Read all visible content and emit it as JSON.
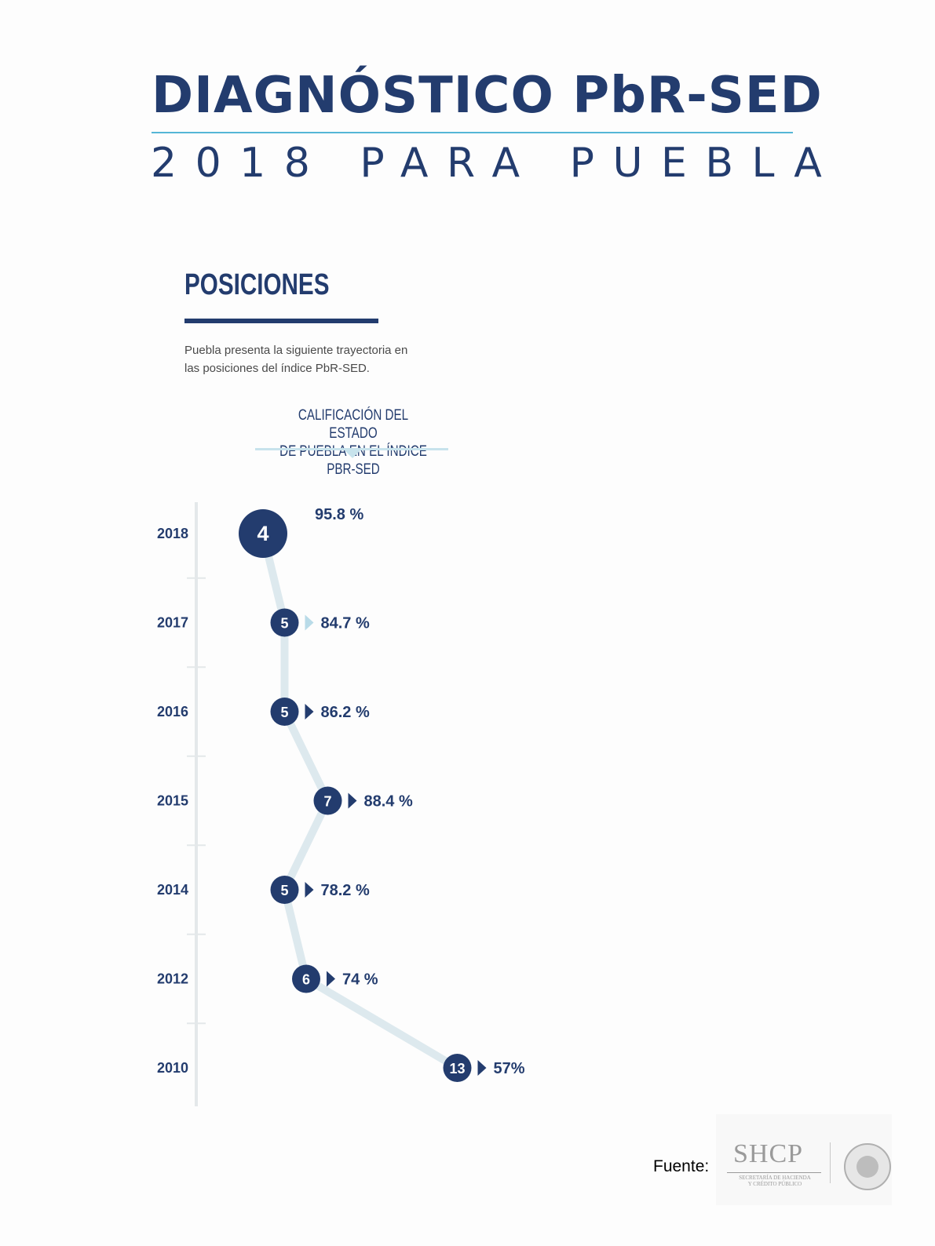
{
  "header": {
    "title": "DIAGNÓSTICO PbR-SED",
    "subtitle": "2018 PARA PUEBLA"
  },
  "section": {
    "heading": "POSICIONES",
    "intro_line1": "Puebla presenta la siguiente trayectoria en",
    "intro_line2": "las posiciones del índice PbR-SED."
  },
  "chart_label": {
    "line1": "CALIFICACIÓN DEL ESTADO",
    "line2": "DE PUEBLA EN EL ÍNDICE PBR-SED"
  },
  "chart_data": {
    "type": "line",
    "categories": [
      "2018",
      "2017",
      "2016",
      "2015",
      "2014",
      "2012",
      "2010"
    ],
    "series": [
      {
        "values": [
          4,
          5,
          5,
          7,
          5,
          6,
          13
        ]
      }
    ],
    "data_labels": [
      "95.8 %",
      "84.7 %",
      "86.2 %",
      "88.4 %",
      "78.2 %",
      "74 %",
      "57%"
    ],
    "scores": [
      95.8,
      84.7,
      86.2,
      88.4,
      78.2,
      74,
      57
    ],
    "orientation": "vertical",
    "grid": false,
    "colors": {
      "marker": "#233c6e",
      "line": "#dde9ee",
      "axis": "#e4e8ea",
      "text": "#233c6e"
    }
  },
  "footer": {
    "source_label": "Fuente:",
    "logo_text": "SHCP",
    "logo_subtext_line1": "SECRETARÍA DE HACIENDA",
    "logo_subtext_line2": "Y CRÉDITO PÚBLICO"
  }
}
